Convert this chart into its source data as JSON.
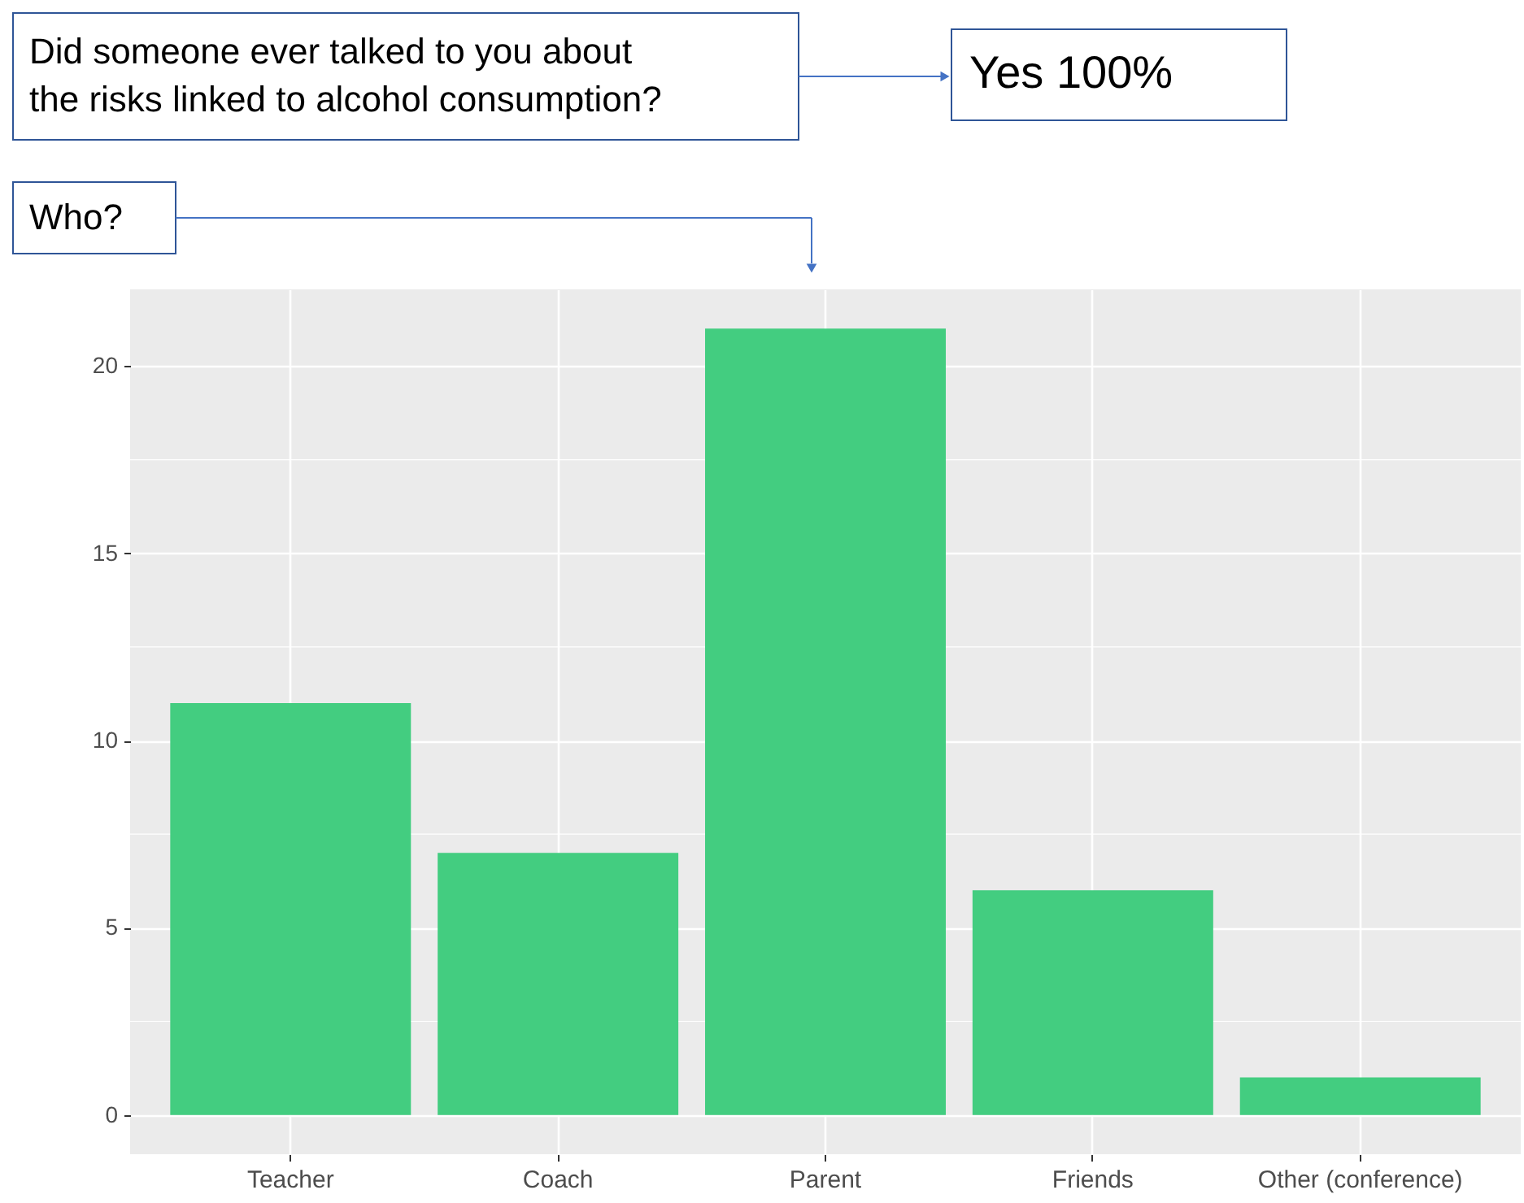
{
  "chart_data": {
    "type": "bar",
    "categories": [
      "Teacher",
      "Coach",
      "Parent",
      "Friends",
      "Other (conference)"
    ],
    "values": [
      11,
      7,
      21,
      6,
      1
    ],
    "color": "#43cd80",
    "ylim": [
      -1.05,
      22.05
    ],
    "yticks": [
      0,
      5,
      10,
      15,
      20
    ],
    "grid": true,
    "annotations": [
      "Did someone ever talked to you about the risks linked to alcohol consumption?",
      "Yes 100%",
      "Who?"
    ]
  }
}
